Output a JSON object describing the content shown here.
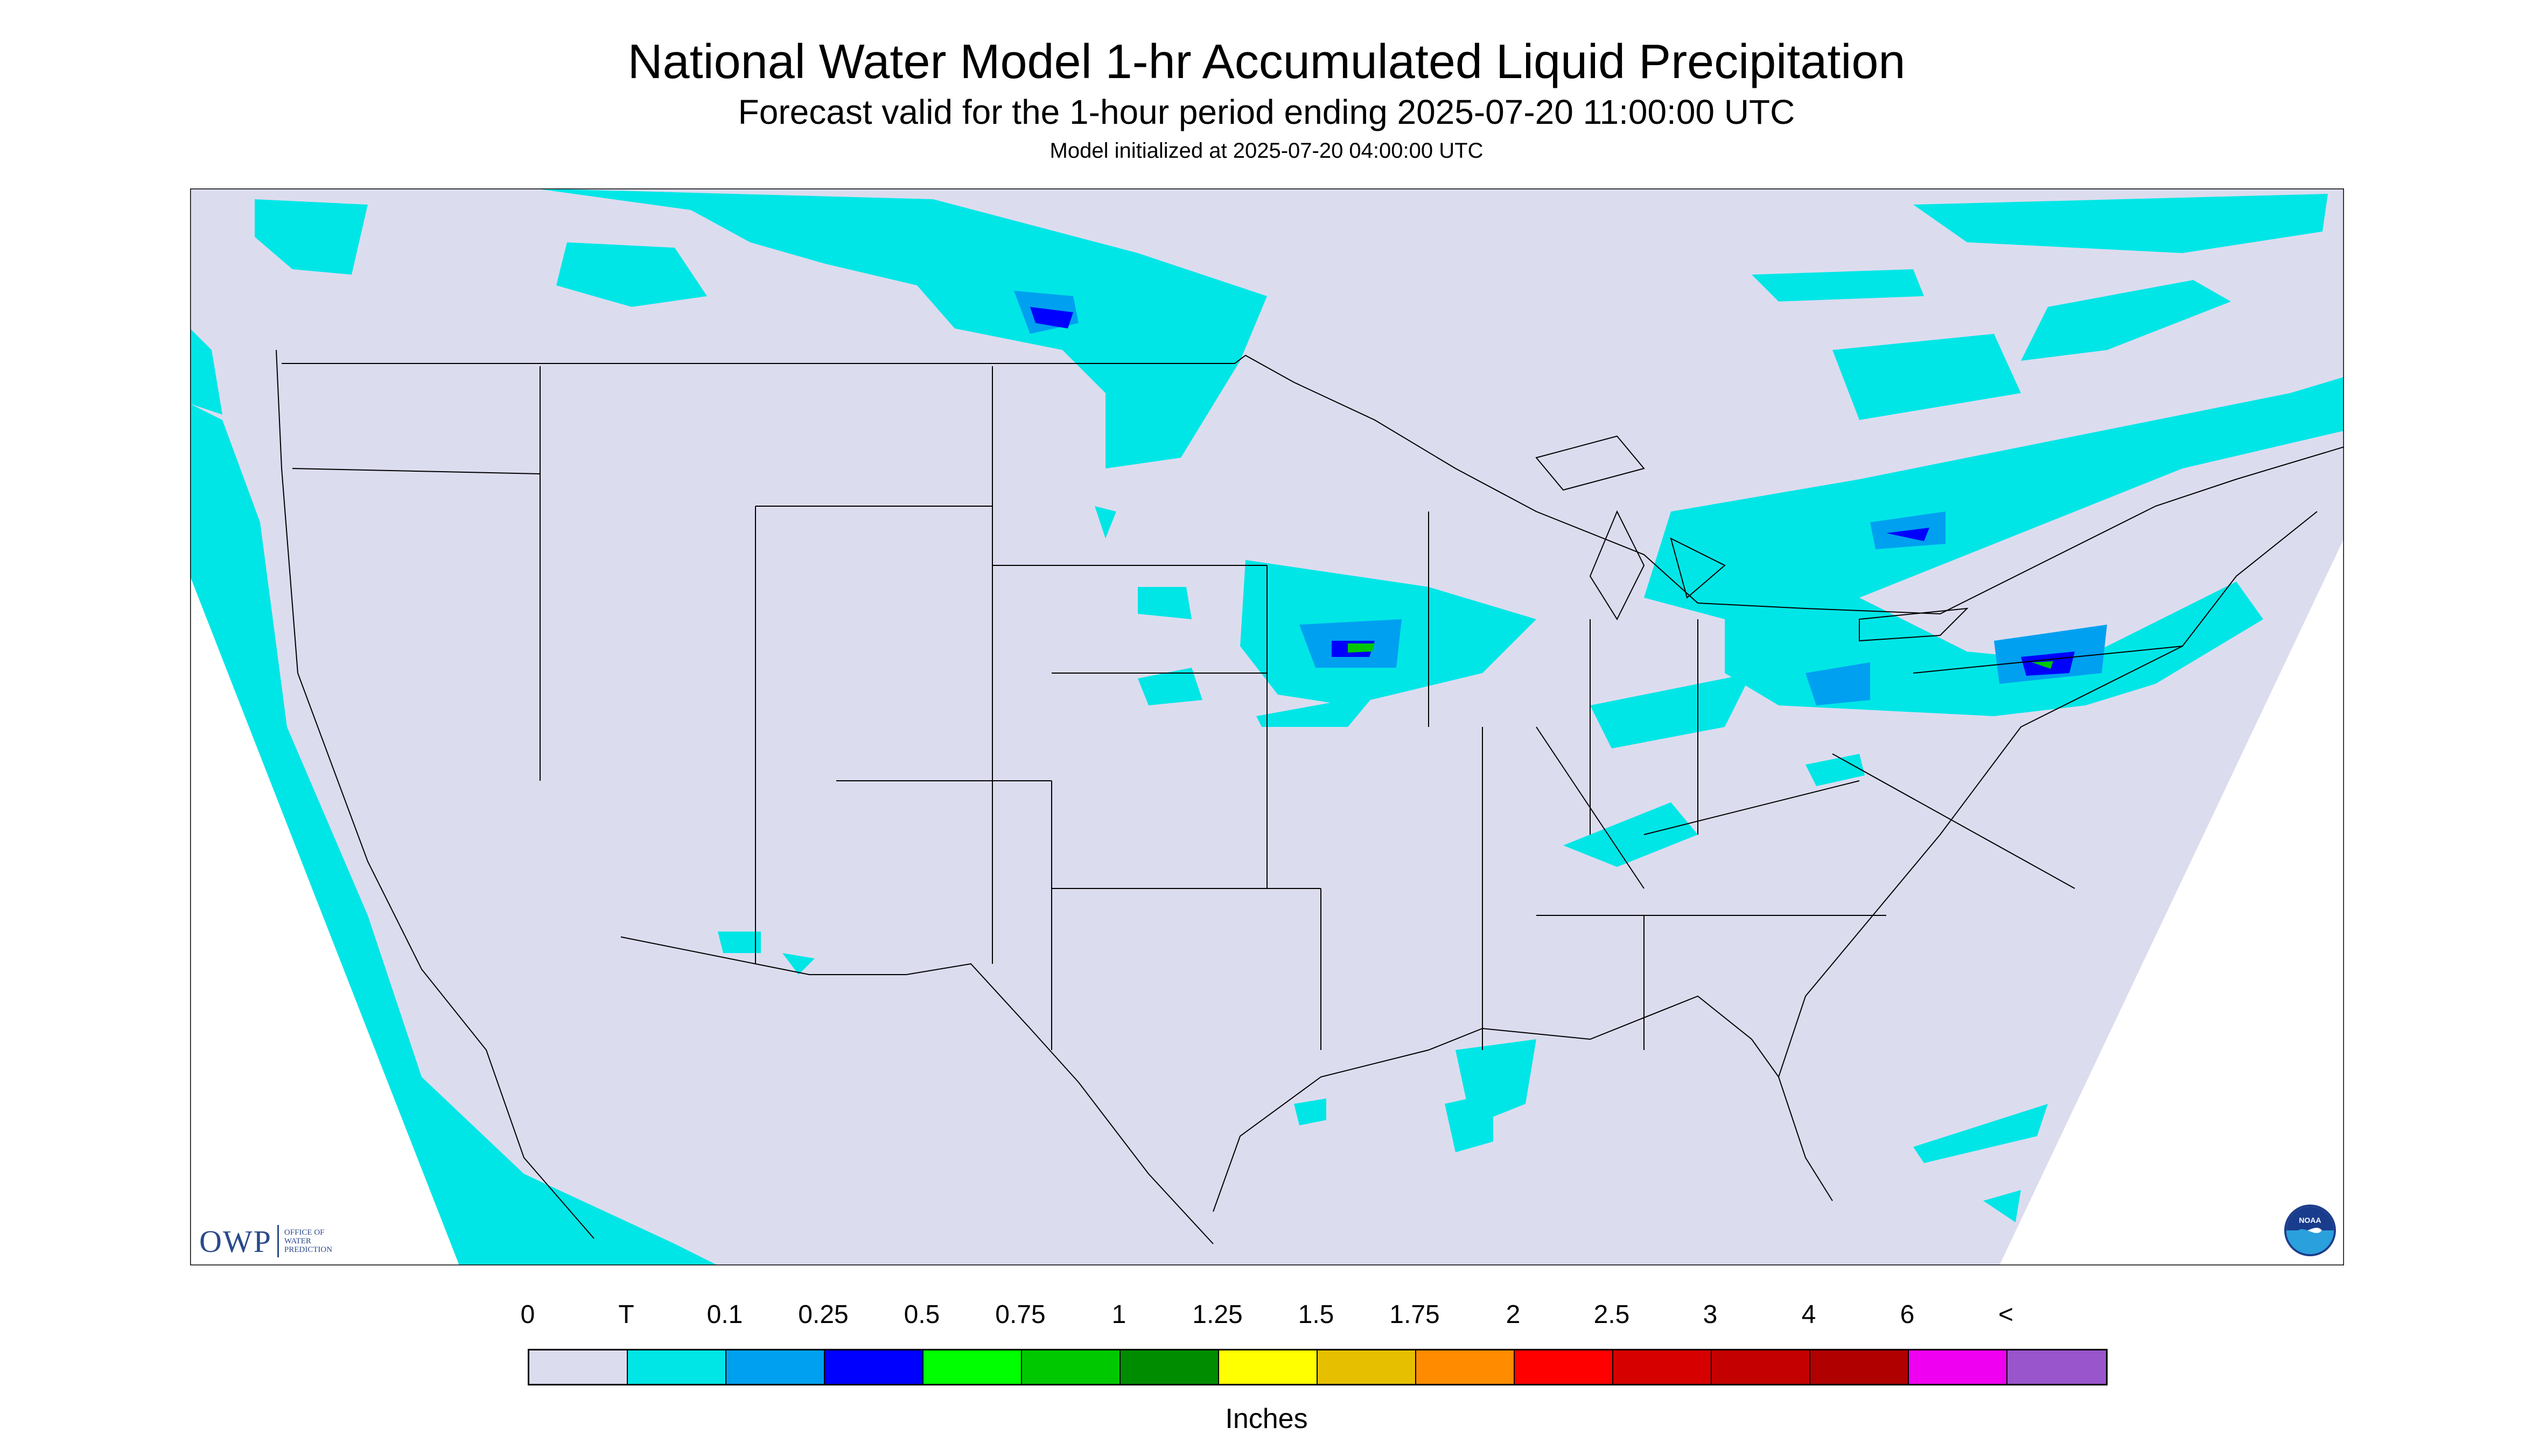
{
  "header": {
    "title": "National Water Model 1-hr Accumulated Liquid Precipitation",
    "subtitle": "Forecast valid for the 1-hour period ending 2025-07-20 11:00:00 UTC",
    "initialized": "Model initialized at 2025-07-20 04:00:00 UTC"
  },
  "map": {
    "background_color": "#dcdcef",
    "outside_domain_color": "#ffffff",
    "boundary_color": "#000000",
    "precip_light_color": "#00e6e6",
    "precip_moderate_color": "#00a0f0",
    "precip_heavy_color": "#0000ff",
    "precip_extreme_color": "#00c800"
  },
  "legend": {
    "labels": [
      "0",
      "T",
      "0.1",
      "0.25",
      "0.5",
      "0.75",
      "1",
      "1.25",
      "1.5",
      "1.75",
      "2",
      "2.5",
      "3",
      "4",
      "6",
      "<"
    ],
    "colors": [
      "#dcdcef",
      "#00e6e6",
      "#00a0f0",
      "#0000ff",
      "#00ff00",
      "#00c800",
      "#008c00",
      "#ffff00",
      "#e6c000",
      "#ff8c00",
      "#ff0000",
      "#d70000",
      "#c40000",
      "#b00000",
      "#f000f0",
      "#9955cc"
    ],
    "units": "Inches"
  },
  "logos": {
    "owp_mark": "OWP",
    "owp_text": "OFFICE OF\nWATER\nPREDICTION",
    "noaa_text": "NOAA",
    "noaa_icon": "noaa-logo-icon"
  }
}
